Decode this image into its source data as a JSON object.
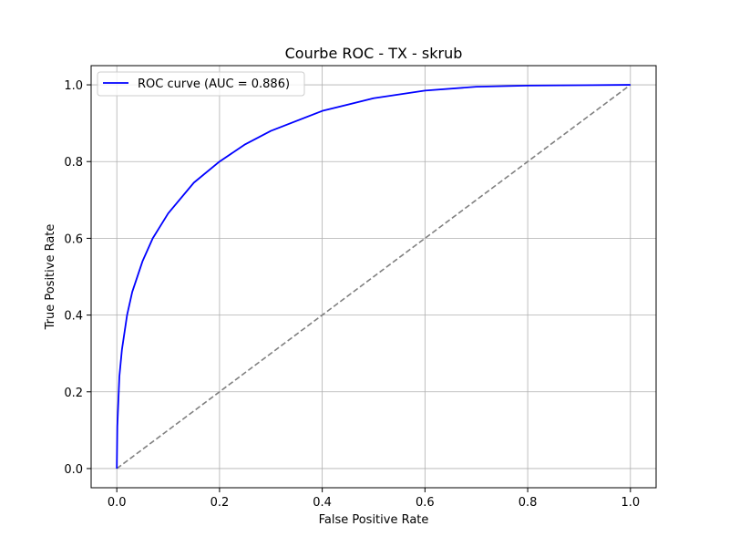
{
  "chart_data": {
    "type": "line",
    "title": "Courbe ROC - TX - skrub",
    "xlabel": "False Positive Rate",
    "ylabel": "True Positive Rate",
    "xlim": [
      -0.05,
      1.05
    ],
    "ylim": [
      -0.05,
      1.05
    ],
    "x_ticks": [
      "0.0",
      "0.2",
      "0.4",
      "0.6",
      "0.8",
      "1.0"
    ],
    "y_ticks": [
      "0.0",
      "0.2",
      "0.4",
      "0.6",
      "0.8",
      "1.0"
    ],
    "grid": true,
    "legend_position": "top-left",
    "series": [
      {
        "name": "ROC curve (AUC = 0.886)",
        "color": "#0000ff",
        "style": "solid",
        "x": [
          0.0,
          0.001,
          0.005,
          0.01,
          0.02,
          0.03,
          0.05,
          0.07,
          0.1,
          0.15,
          0.2,
          0.25,
          0.3,
          0.4,
          0.5,
          0.6,
          0.7,
          0.8,
          0.9,
          1.0
        ],
        "y": [
          0.0,
          0.11,
          0.24,
          0.31,
          0.4,
          0.46,
          0.54,
          0.6,
          0.665,
          0.745,
          0.8,
          0.845,
          0.88,
          0.932,
          0.965,
          0.985,
          0.995,
          0.998,
          0.999,
          1.0
        ]
      },
      {
        "color": "#808080",
        "style": "dashed",
        "x": [
          0.0,
          1.0
        ],
        "y": [
          0.0,
          1.0
        ]
      }
    ]
  }
}
